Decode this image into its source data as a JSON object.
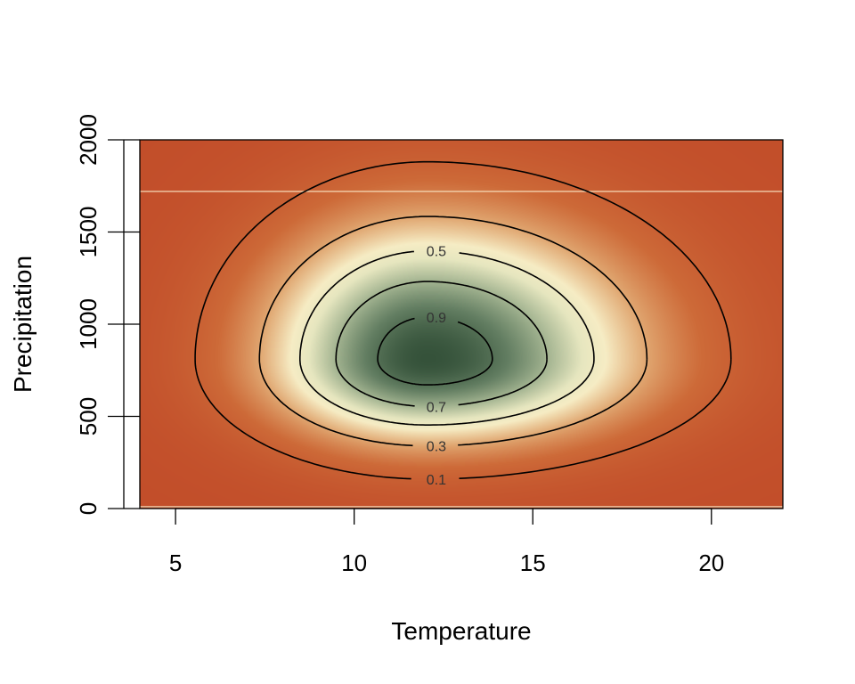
{
  "chart_data": {
    "type": "heatmap",
    "subtype": "filled-contour",
    "title": "",
    "xlabel": "Temperature",
    "ylabel": "Precipitation",
    "xlim": [
      4,
      22
    ],
    "ylim": [
      0,
      2000
    ],
    "xticks": [
      5,
      10,
      15,
      20
    ],
    "yticks": [
      0,
      500,
      1000,
      1500,
      2000
    ],
    "xtick_labels": [
      "5",
      "10",
      "15",
      "20"
    ],
    "ytick_labels": [
      "0",
      "500",
      "1000",
      "1500",
      "2000"
    ],
    "peak": {
      "temperature": 12.05,
      "precipitation": 810,
      "value": 1.0
    },
    "spread": {
      "temp_left": 3.03,
      "temp_right": 3.96,
      "precip_up": 499,
      "precip_down": 303
    },
    "contour_levels": [
      0.1,
      0.3,
      0.5,
      0.7,
      0.9
    ],
    "contour_labels": [
      "0.1",
      "0.3",
      "0.5",
      "0.7",
      "0.9"
    ],
    "contour_label_side": [
      "bottom",
      "bottom",
      "top",
      "bottom",
      "top"
    ],
    "reference_lines_precipitation": [
      1720,
      10
    ],
    "colors": {
      "low": "#c24e2a",
      "mid": "#f6ecc4",
      "high": "#35523a",
      "reference_line": "#fbe9c8"
    },
    "grid": false,
    "legend": "none"
  }
}
